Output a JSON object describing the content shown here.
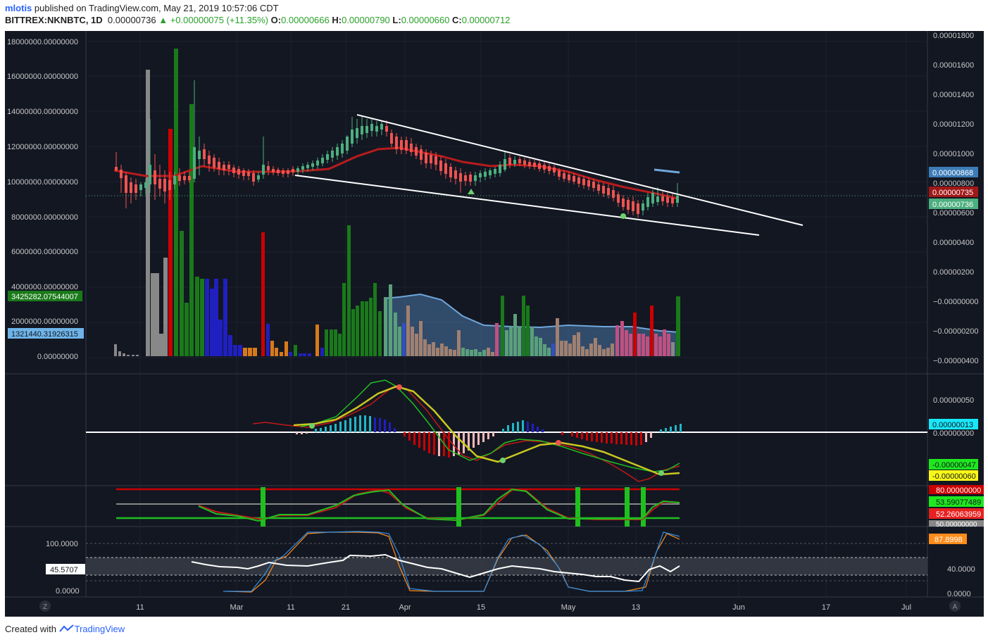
{
  "header": {
    "user": "mlotis",
    "published": "published on TradingView.com, May 21, 2019 10:57:06 CDT",
    "symbol": "BITTREX:NKNBTC, 1D",
    "price": "0.00000736",
    "change": "+0.00000075 (+11.35%)",
    "o_label": "O:",
    "o": "0.00000666",
    "h_label": "H:",
    "h": "0.00000790",
    "l_label": "L:",
    "l": "0.00000660",
    "c_label": "C:",
    "c": "0.00000712"
  },
  "footer": {
    "created": "Created with",
    "brand": "TradingView"
  },
  "axes": {
    "left_volume": [
      "18000000.00000000",
      "16000000.00000000",
      "14000000.00000000",
      "12000000.00000000",
      "10000000.00000000",
      "8000000.00000000",
      "6000000.00000000",
      "4000000.00000000",
      "2000000.00000000",
      "0.00000000"
    ],
    "right_price": [
      "0.00001800",
      "0.00001600",
      "0.00001400",
      "0.00001200",
      "0.00001000",
      "0.00000800",
      "0.00000600",
      "0.00000400",
      "0.00000200",
      "−0.00000000",
      "−0.00000200",
      "−0.00000400"
    ],
    "macd": [
      "0.00000050",
      "0.00000000"
    ],
    "rsi_left": [
      "100.0000",
      "0.0000"
    ],
    "rsi_right": [
      "40.0000",
      "0.0000"
    ],
    "x_labels": [
      "11",
      "Mar",
      "11",
      "21",
      "Apr",
      "15",
      "May",
      "13",
      "Jun",
      "17",
      "Jul"
    ]
  },
  "badges": {
    "vol_green": "3425282.07544007",
    "vol_blue": "1321440.31926315",
    "price_blue": "0.00000868",
    "price_red": "0.00000735",
    "price_green": "0.00000736",
    "macd_cyan": "0.00000013",
    "macd_green": "-0.00000047",
    "macd_yellow": "-0.00000060",
    "stoch_80": "80.00000000",
    "stoch_green": "53.59077489",
    "stoch_red": "52.26063959",
    "stoch_50": "50.00000000",
    "rsi_orange": "87.8998",
    "rsi_white": "45.5707"
  },
  "corner_icons": {
    "left": "Z",
    "right": "A"
  },
  "colors": {
    "bg": "#131722",
    "up": "#4caf7f",
    "down": "#ef5350",
    "ma": "#b71c1c",
    "trend": "#ffffff"
  }
}
